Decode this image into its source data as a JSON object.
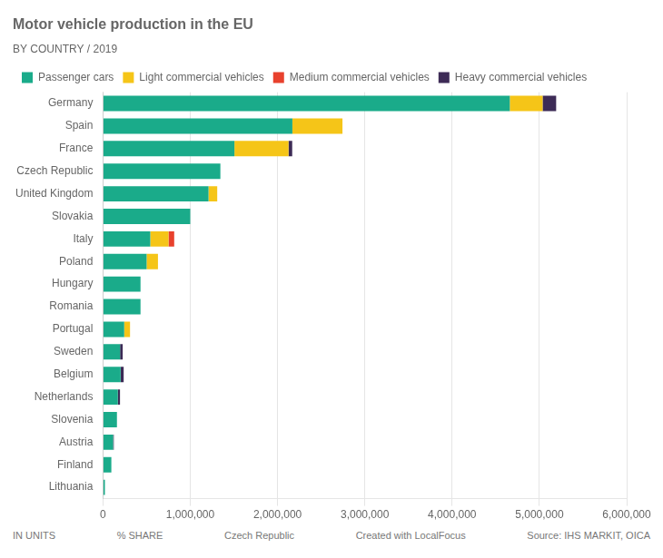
{
  "chart_data": {
    "type": "bar",
    "orientation": "horizontal",
    "stacked": true,
    "title": "Motor vehicle production in the EU",
    "subtitle": "BY COUNTRY / 2019",
    "categories": [
      "Germany",
      "Spain",
      "France",
      "Czech Republic",
      "United Kingdom",
      "Slovakia",
      "Italy",
      "Poland",
      "Hungary",
      "Romania",
      "Portugal",
      "Sweden",
      "Belgium",
      "Netherlands",
      "Slovenia",
      "Austria",
      "Finland",
      "Lithuania"
    ],
    "series": [
      {
        "name": "Passenger cars",
        "color": "#1aab8a",
        "values": [
          4661000,
          2170000,
          1506000,
          1345000,
          1209000,
          1000000,
          542000,
          500000,
          430000,
          430000,
          243000,
          196000,
          202000,
          170000,
          160000,
          116000,
          96000,
          22000
        ]
      },
      {
        "name": "Light commercial vehicles",
        "color": "#f5c518",
        "values": [
          376000,
          574000,
          620000,
          0,
          100000,
          0,
          209000,
          130000,
          0,
          0,
          67000,
          0,
          0,
          0,
          0,
          0,
          0,
          0
        ]
      },
      {
        "name": "Medium commercial vehicles",
        "color": "#e8412d",
        "values": [
          0,
          0,
          0,
          0,
          0,
          0,
          65000,
          0,
          0,
          0,
          0,
          0,
          0,
          0,
          0,
          0,
          0,
          0
        ]
      },
      {
        "name": "Heavy commercial vehicles",
        "color": "#3d2b56",
        "values": [
          155000,
          0,
          42000,
          0,
          0,
          0,
          0,
          0,
          0,
          0,
          0,
          30000,
          35000,
          25000,
          0,
          8000,
          0,
          0
        ]
      }
    ],
    "xlim": [
      0,
      6000000
    ],
    "xticks": [
      0,
      {
        "value": 1000000,
        "label": "1,000,000"
      },
      {
        "value": 2000000,
        "label": "2,000,000"
      },
      {
        "value": 3000000,
        "label": "3,000,000"
      },
      {
        "value": 4000000,
        "label": "4,000,000"
      },
      {
        "value": 5000000,
        "label": "5,000,000"
      },
      {
        "value": 6000000,
        "label": "6,000,000"
      }
    ],
    "grid": true,
    "legend": "upper left",
    "annotations": [
      "IN UNITS",
      "% SHARE",
      "Czech Republic",
      "Created with LocalFocus",
      "Source: IHS MARKIT, OICA"
    ]
  }
}
